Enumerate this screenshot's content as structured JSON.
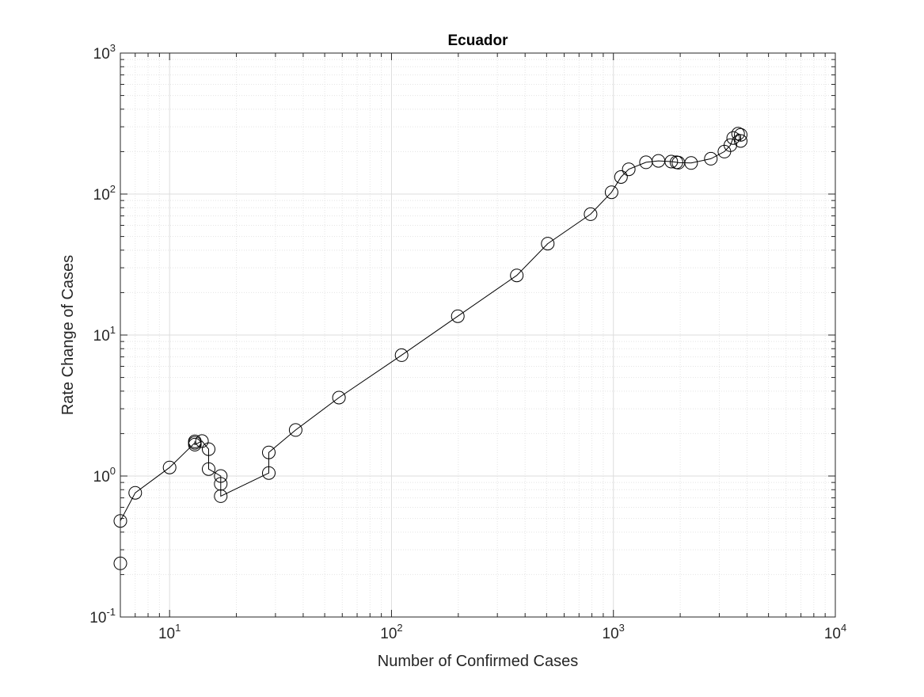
{
  "chart_data": {
    "type": "scatter",
    "title": "Ecuador",
    "xlabel": "Number of Confirmed Cases",
    "ylabel": "Rate Change of Cases",
    "xscale": "log",
    "yscale": "log",
    "xlim": [
      6,
      10000
    ],
    "ylim": [
      0.1,
      1000
    ],
    "grid": true,
    "minor_grid": true,
    "marker": "open-circle",
    "connected": true,
    "line_color": "#000000",
    "xticks": [
      {
        "value": 10,
        "base": "10",
        "exp": "1"
      },
      {
        "value": 100,
        "base": "10",
        "exp": "2"
      },
      {
        "value": 1000,
        "base": "10",
        "exp": "3"
      },
      {
        "value": 10000,
        "base": "10",
        "exp": "4"
      }
    ],
    "yticks": [
      {
        "value": 0.1,
        "base": "10",
        "exp": "-1"
      },
      {
        "value": 1,
        "base": "10",
        "exp": "0"
      },
      {
        "value": 10,
        "base": "10",
        "exp": "1"
      },
      {
        "value": 100,
        "base": "10",
        "exp": "2"
      },
      {
        "value": 1000,
        "base": "10",
        "exp": "3"
      }
    ],
    "points": [
      {
        "x": 6,
        "y": 0.24
      },
      {
        "x": 6,
        "y": 0.48
      },
      {
        "x": 7,
        "y": 0.76
      },
      {
        "x": 10,
        "y": 1.15
      },
      {
        "x": 13,
        "y": 1.72
      },
      {
        "x": 13,
        "y": 1.76
      },
      {
        "x": 13,
        "y": 1.67
      },
      {
        "x": 14,
        "y": 1.77
      },
      {
        "x": 15,
        "y": 1.55
      },
      {
        "x": 15,
        "y": 1.12
      },
      {
        "x": 17,
        "y": 1.0
      },
      {
        "x": 17,
        "y": 0.88
      },
      {
        "x": 17,
        "y": 0.72
      },
      {
        "x": 28,
        "y": 1.05
      },
      {
        "x": 28,
        "y": 1.47
      },
      {
        "x": 37,
        "y": 2.12
      },
      {
        "x": 58,
        "y": 3.6
      },
      {
        "x": 111,
        "y": 7.2
      },
      {
        "x": 199,
        "y": 13.6
      },
      {
        "x": 367,
        "y": 26.5
      },
      {
        "x": 506,
        "y": 44.5
      },
      {
        "x": 789,
        "y": 72
      },
      {
        "x": 981,
        "y": 103
      },
      {
        "x": 1082,
        "y": 132
      },
      {
        "x": 1173,
        "y": 150
      },
      {
        "x": 1403,
        "y": 168
      },
      {
        "x": 1595,
        "y": 172
      },
      {
        "x": 1823,
        "y": 170
      },
      {
        "x": 1924,
        "y": 168
      },
      {
        "x": 1962,
        "y": 167
      },
      {
        "x": 2240,
        "y": 166
      },
      {
        "x": 2748,
        "y": 178
      },
      {
        "x": 3163,
        "y": 200
      },
      {
        "x": 3368,
        "y": 222
      },
      {
        "x": 3465,
        "y": 250
      },
      {
        "x": 3646,
        "y": 268
      },
      {
        "x": 3747,
        "y": 263
      },
      {
        "x": 3747,
        "y": 238
      }
    ]
  }
}
